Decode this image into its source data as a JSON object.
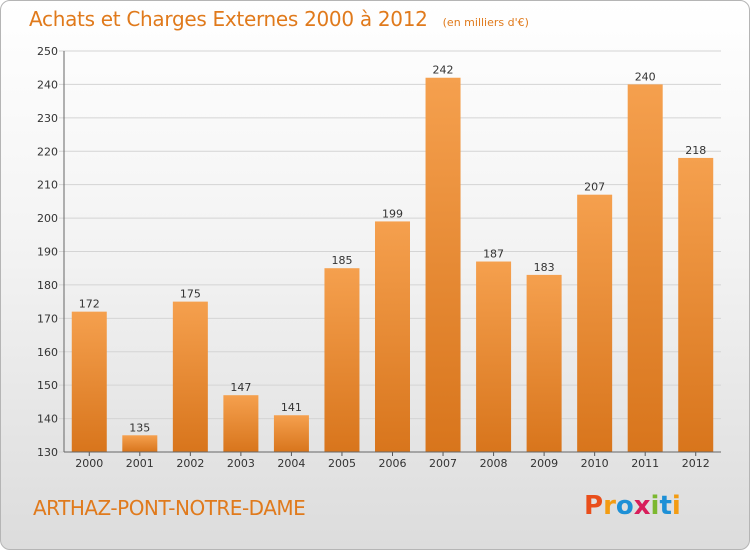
{
  "header": {
    "title": "Achats et Charges Externes 2000 à 2012",
    "subtitle": "(en milliers d'€)"
  },
  "footer": {
    "city": "ARTHAZ-PONT-NOTRE-DAME",
    "logo_letters": [
      "P",
      "r",
      "o",
      "x",
      "i",
      "t",
      "i"
    ],
    "logo_colors": [
      "#e94e1b",
      "#f39c12",
      "#1e90d6",
      "#d81e5b",
      "#7cb82f",
      "#1e90d6",
      "#f39c12"
    ]
  },
  "colors": {
    "bar_top": "#f5a04e",
    "bar_bottom": "#d8751c",
    "accent": "#e07a1c"
  },
  "chart_data": {
    "type": "bar",
    "title": "Achats et Charges Externes 2000 à 2012",
    "categories": [
      "2000",
      "2001",
      "2002",
      "2003",
      "2004",
      "2005",
      "2006",
      "2007",
      "2008",
      "2009",
      "2010",
      "2011",
      "2012"
    ],
    "values": [
      172,
      135,
      175,
      147,
      141,
      185,
      199,
      242,
      187,
      183,
      207,
      240,
      218
    ],
    "ylim": [
      130,
      250
    ],
    "yticks": [
      130,
      140,
      150,
      160,
      170,
      180,
      190,
      200,
      210,
      220,
      230,
      240,
      250
    ],
    "grid": true,
    "xlabel": "",
    "ylabel": ""
  }
}
